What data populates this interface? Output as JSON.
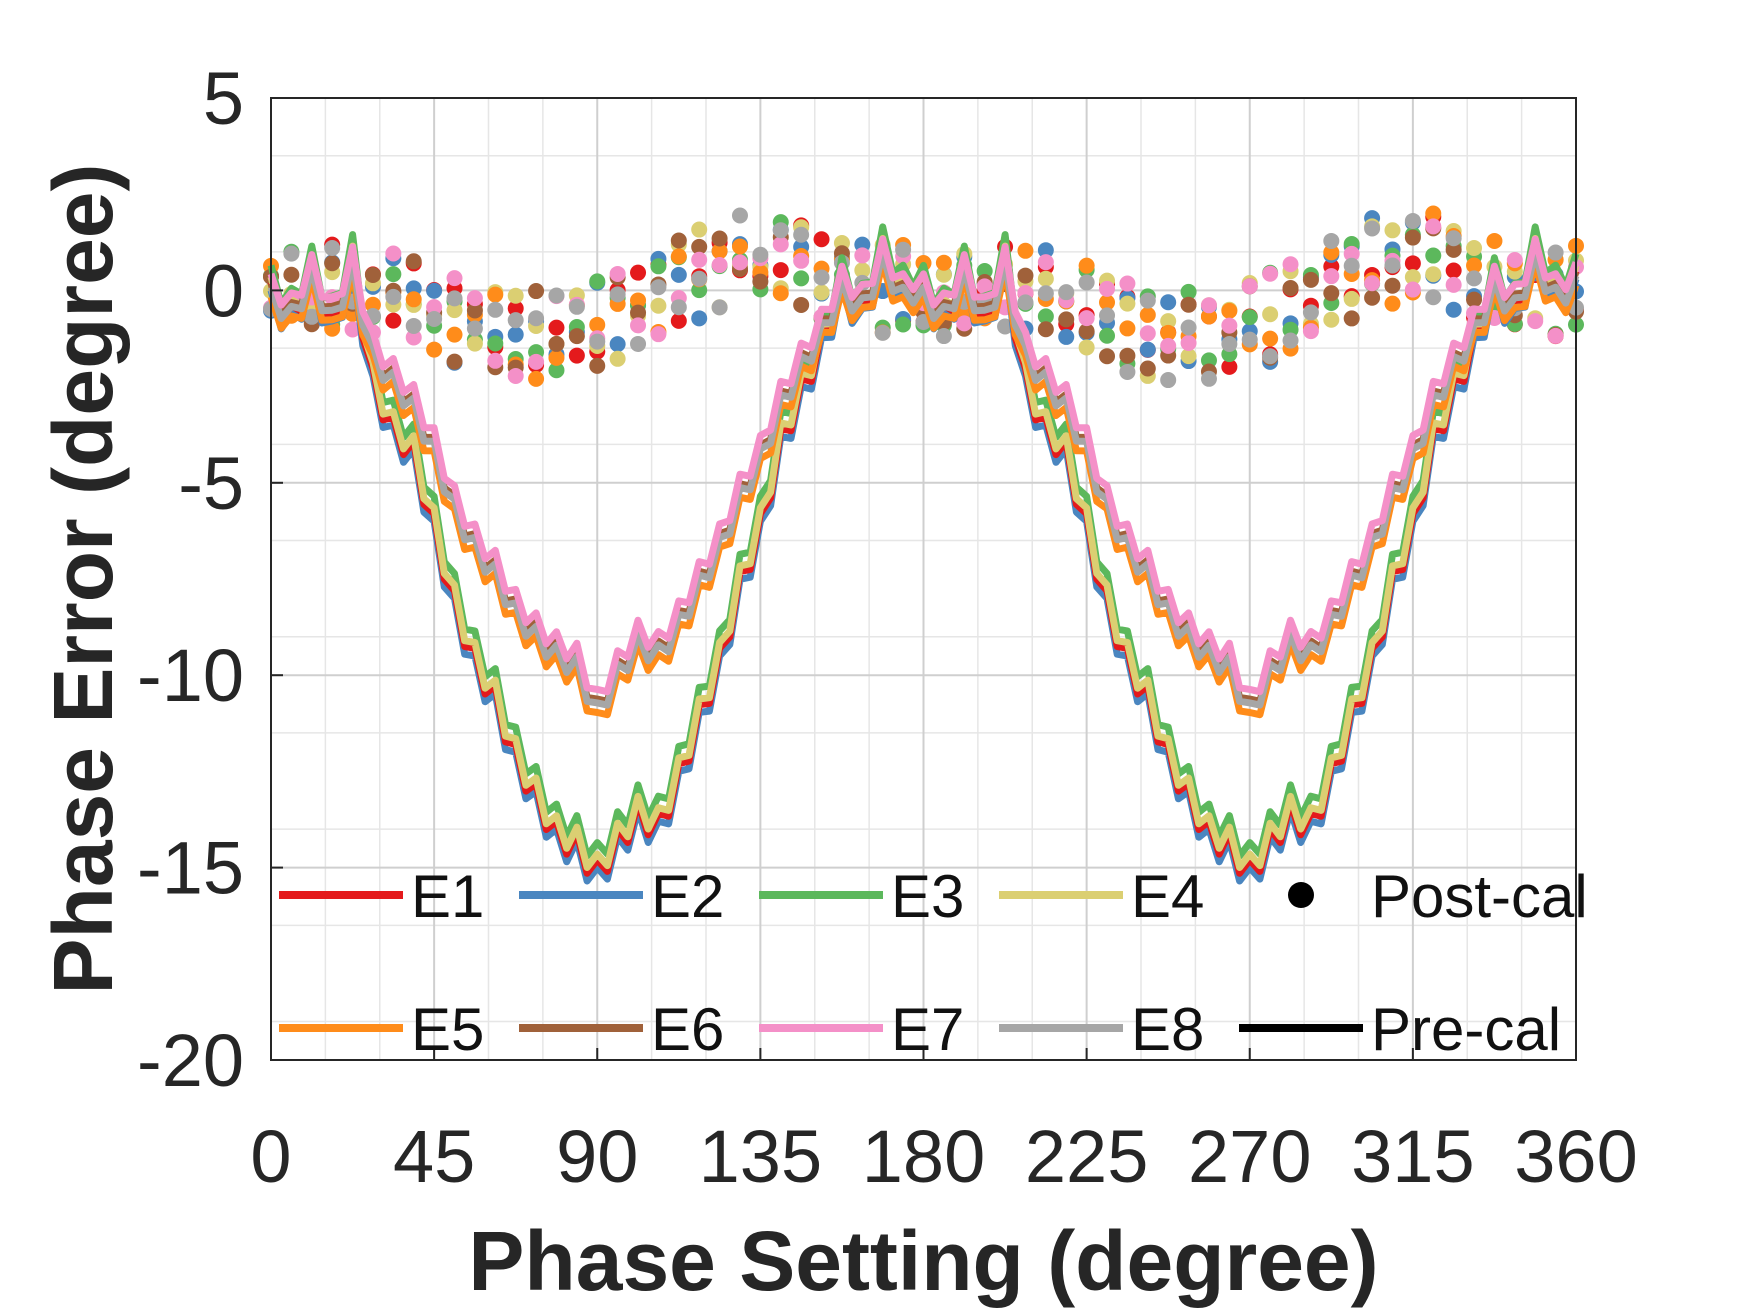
{
  "chart_data": {
    "type": "line",
    "title": "",
    "xlabel": "Phase Setting (degree)",
    "ylabel": "Phase Error (degree)",
    "xlim": [
      0,
      360
    ],
    "ylim": [
      -20,
      5
    ],
    "xticks": [
      "0",
      "45",
      "90",
      "135",
      "180",
      "225",
      "270",
      "315",
      "360"
    ],
    "yticks": [
      "5",
      "0",
      "-5",
      "-10",
      "-15",
      "-20"
    ],
    "grid": true,
    "legend_location": "lower-center, inside axes, 2 rows",
    "x_step_deg": 2.8125,
    "pre_cal_template": {
      "description": "phase error vs phase setting (interpolated points, degree)",
      "x": [
        0,
        5.6,
        11.25,
        16.9,
        22.5,
        28,
        33.75,
        39,
        45,
        50.6,
        56.25,
        62,
        67.5,
        73,
        78.75,
        84.4,
        90,
        95.6,
        101.25,
        107,
        112.5,
        118,
        123.75,
        129.4,
        135,
        140.6,
        146.25,
        152,
        157.5,
        163,
        168.75,
        174.4,
        180
      ],
      "y_deep": [
        0,
        -0.6,
        0.5,
        -0.8,
        0.8,
        -2.2,
        -3.5,
        -4.0,
        -6.0,
        -8.0,
        -9.5,
        -10.5,
        -12.0,
        -13.0,
        -14.0,
        -14.3,
        -15.0,
        -14.2,
        -13.5,
        -13.8,
        -12.5,
        -11.0,
        -9.5,
        -7.5,
        -6.0,
        -3.8,
        -2.5,
        -1.2,
        0.2,
        -0.5,
        1.0,
        0.0,
        0.3
      ],
      "y_shallow": [
        0,
        -0.5,
        0.5,
        -0.6,
        0.7,
        -1.5,
        -2.2,
        -2.8,
        -4.0,
        -5.5,
        -6.5,
        -7.2,
        -8.2,
        -8.8,
        -9.3,
        -9.6,
        -10.8,
        -9.8,
        -9.0,
        -9.3,
        -8.5,
        -7.5,
        -6.5,
        -5.2,
        -4.2,
        -2.8,
        -1.8,
        -0.9,
        0.2,
        -0.3,
        0.9,
        0.0,
        0.3
      ]
    },
    "series": [
      {
        "name": "E1",
        "color": "#e41a1c",
        "profile": "deep",
        "offset": -0.15
      },
      {
        "name": "E2",
        "color": "#4a86c0",
        "profile": "deep",
        "offset": -0.35
      },
      {
        "name": "E3",
        "color": "#5cb85c",
        "profile": "deep",
        "offset": 0.3
      },
      {
        "name": "E4",
        "color": "#dbcf72",
        "profile": "deep",
        "offset": 0.0
      },
      {
        "name": "E5",
        "color": "#ff8c1a",
        "profile": "shallow",
        "offset": -0.45
      },
      {
        "name": "E6",
        "color": "#a0613a",
        "profile": "shallow",
        "offset": -0.1
      },
      {
        "name": "E7",
        "color": "#f490c8",
        "profile": "shallow",
        "offset": 0.15
      },
      {
        "name": "E8",
        "color": "#a6a6a6",
        "profile": "shallow",
        "offset": -0.2
      }
    ],
    "post_cal": {
      "description": "scattered calibrated phase error, roughly within -3.5 to +2.5 degree",
      "range": [
        -3.5,
        2.5
      ]
    },
    "legend": [
      {
        "label": "E1",
        "kind": "line",
        "color": "#e41a1c"
      },
      {
        "label": "E2",
        "kind": "line",
        "color": "#4a86c0"
      },
      {
        "label": "E3",
        "kind": "line",
        "color": "#5cb85c"
      },
      {
        "label": "E4",
        "kind": "line",
        "color": "#dbcf72"
      },
      {
        "label": "Post-cal",
        "kind": "marker",
        "color": "#000000"
      },
      {
        "label": "E5",
        "kind": "line",
        "color": "#ff8c1a"
      },
      {
        "label": "E6",
        "kind": "line",
        "color": "#a0613a"
      },
      {
        "label": "E7",
        "kind": "line",
        "color": "#f490c8"
      },
      {
        "label": "E8",
        "kind": "line",
        "color": "#a6a6a6"
      },
      {
        "label": "Pre-cal",
        "kind": "line",
        "color": "#000000"
      }
    ]
  }
}
